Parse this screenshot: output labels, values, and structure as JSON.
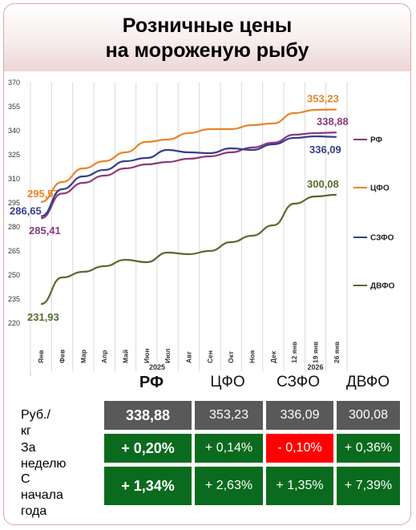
{
  "title": "Розничные цены\nна мороженую рыбу",
  "chart_data": {
    "type": "line",
    "y_ticks": [
      220,
      235,
      250,
      265,
      280,
      295,
      310,
      325,
      340,
      355,
      370
    ],
    "ylim": [
      220,
      370
    ],
    "categories": [
      "Янв",
      "Фев",
      "Мар",
      "Апр",
      "Май",
      "Июн",
      "Июл",
      "Авг",
      "Сен",
      "Окт",
      "Ноя",
      "Дек",
      "12 янв",
      "19 янв",
      "26 янв"
    ],
    "year_labels": [
      "2025",
      "2026"
    ],
    "grid": "vertical",
    "legend_position": "right",
    "series": [
      {
        "name": "РФ",
        "color": "#8b3a7e",
        "start_label": "285,41",
        "end_label": "338,88",
        "values": [
          285.41,
          300.8,
          307.5,
          312.0,
          316.5,
          319.0,
          320.5,
          322.5,
          324.0,
          326.5,
          329.5,
          332.5,
          337.5,
          338.5,
          338.88
        ]
      },
      {
        "name": "ЦФО",
        "color": "#e8842a",
        "start_label": "295,57",
        "end_label": "353,23",
        "values": [
          295.57,
          308.0,
          316.5,
          321.0,
          326.5,
          333.0,
          334.5,
          338.5,
          341.0,
          341.0,
          343.5,
          344.5,
          351.0,
          353.0,
          353.23
        ]
      },
      {
        "name": "СЗФО",
        "color": "#363e8c",
        "start_label": "286,65",
        "end_label": "336,09",
        "values": [
          286.65,
          303.5,
          311.5,
          315.5,
          321.0,
          323.0,
          328.0,
          326.5,
          326.0,
          329.0,
          328.0,
          331.5,
          335.5,
          336.5,
          336.09
        ]
      },
      {
        "name": "ДВФО",
        "color": "#556b2f",
        "start_label": "231,93",
        "end_label": "300,08",
        "values": [
          231.93,
          248.5,
          252.0,
          255.5,
          259.5,
          258.0,
          264.0,
          263.0,
          265.0,
          270.5,
          274.5,
          281.0,
          294.5,
          299.0,
          300.08
        ]
      }
    ]
  },
  "table": {
    "columns": [
      "РФ",
      "ЦФО",
      "СЗФО",
      "ДВФО"
    ],
    "rows": [
      {
        "label": "Руб./кг",
        "cells": [
          "338,88",
          "353,23",
          "336,09",
          "300,08"
        ],
        "colors": [
          "#595959",
          "#595959",
          "#595959",
          "#595959"
        ]
      },
      {
        "label": "За неделю",
        "cells": [
          "+ 0,20%",
          "+ 0,14%",
          "- 0,10%",
          "+ 0,36%"
        ],
        "colors": [
          "#0a6b1e",
          "#0a6b1e",
          "#ff0000",
          "#0a6b1e"
        ]
      },
      {
        "label": "С начала\nгода",
        "cells": [
          "+ 1,34%",
          "+ 2,63%",
          "+ 1,35%",
          "+ 7,39%"
        ],
        "colors": [
          "#0a6b1e",
          "#0a6b1e",
          "#0a6b1e",
          "#0a6b1e"
        ]
      }
    ]
  }
}
